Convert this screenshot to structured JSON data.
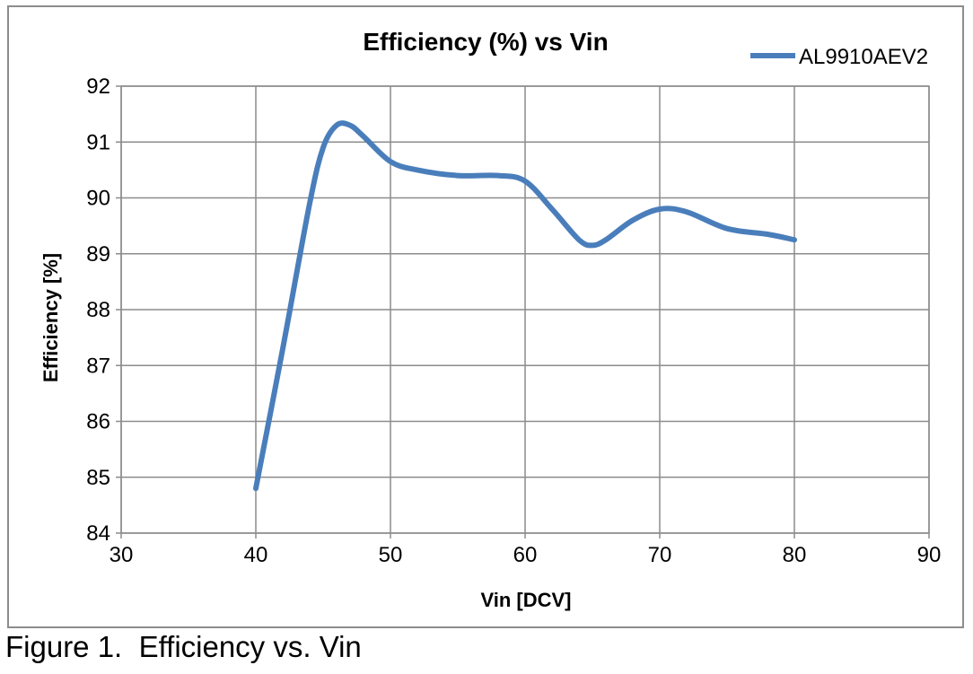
{
  "caption": "Figure 1.  Efficiency vs. Vin",
  "colors": {
    "series": "#4a7ebb",
    "grid": "#8c8c8c",
    "axis": "#8c8c8c"
  },
  "chart_data": {
    "type": "line",
    "title": "Efficiency (%) vs Vin",
    "xlabel": "Vin [DCV]",
    "ylabel": "Efficiency [%]",
    "xlim": [
      30,
      90
    ],
    "ylim": [
      84,
      92
    ],
    "xticks": [
      30,
      40,
      50,
      60,
      70,
      80,
      90
    ],
    "yticks": [
      84,
      85,
      86,
      87,
      88,
      89,
      90,
      91,
      92
    ],
    "grid": true,
    "legend_position": "top-right",
    "series": [
      {
        "name": "AL9910AEV2",
        "x": [
          40,
          42,
          44,
          45,
          46,
          47,
          48,
          50,
          52,
          55,
          58,
          60,
          62,
          64,
          65,
          66,
          68,
          70,
          72,
          75,
          78,
          80
        ],
        "y": [
          84.8,
          87.3,
          89.9,
          90.9,
          91.3,
          91.3,
          91.1,
          90.65,
          90.5,
          90.4,
          90.4,
          90.3,
          89.8,
          89.25,
          89.15,
          89.25,
          89.6,
          89.8,
          89.75,
          89.45,
          89.35,
          89.25
        ]
      }
    ]
  }
}
